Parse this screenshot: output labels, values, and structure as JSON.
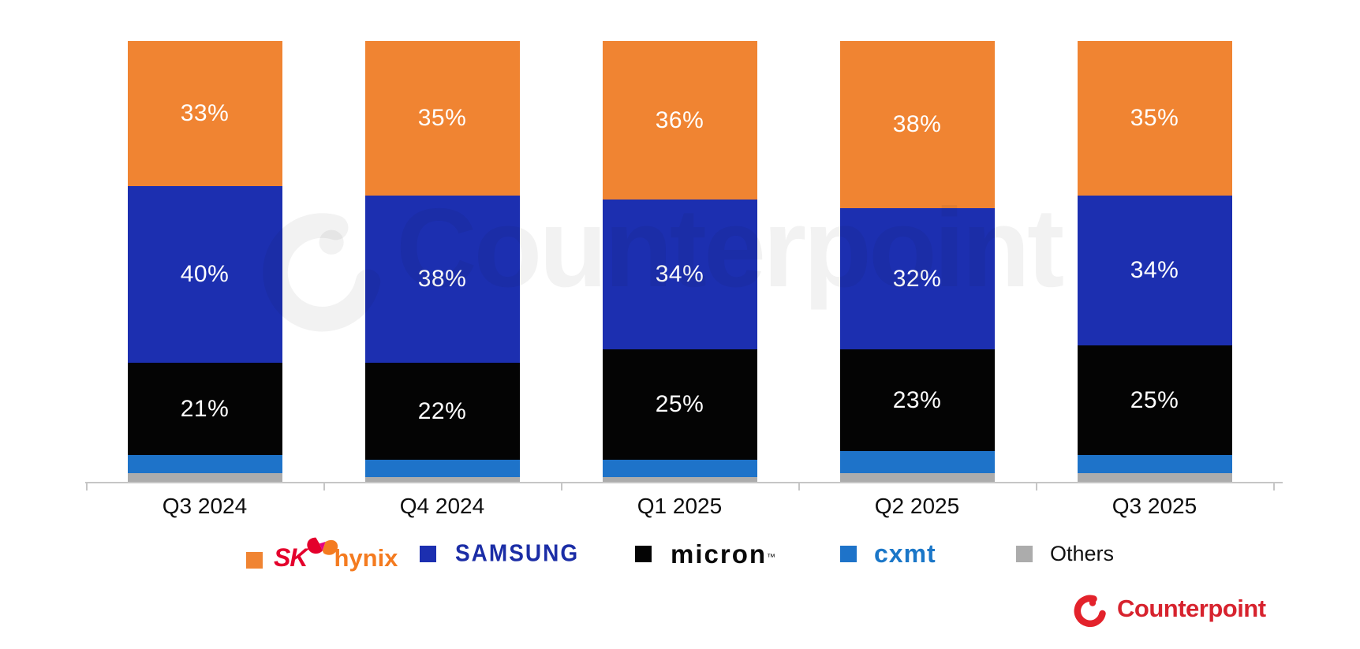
{
  "chart_data": {
    "type": "bar",
    "subtype": "stacked-100",
    "categories": [
      "Q3 2024",
      "Q4 2024",
      "Q1 2025",
      "Q2 2025",
      "Q3 2025"
    ],
    "series": [
      {
        "name": "SK hynix",
        "color": "#F08432",
        "labeled": true,
        "values": [
          33,
          35,
          36,
          38,
          35
        ]
      },
      {
        "name": "Samsung",
        "color": "#1C2FB0",
        "labeled": true,
        "values": [
          40,
          38,
          34,
          32,
          34
        ]
      },
      {
        "name": "Micron",
        "color": "#040404",
        "labeled": true,
        "values": [
          21,
          22,
          25,
          23,
          25
        ]
      },
      {
        "name": "CXMT",
        "color": "#1E73C9",
        "labeled": false,
        "values": [
          4,
          4,
          4,
          5,
          4
        ]
      },
      {
        "name": "Others",
        "color": "#ACACAC",
        "labeled": false,
        "values": [
          2,
          1,
          1,
          2,
          2
        ]
      }
    ],
    "value_suffix": "%",
    "ylim": [
      0,
      100
    ],
    "grid": false,
    "legend_position": "bottom",
    "title": "",
    "xlabel": "",
    "ylabel": ""
  },
  "legend": {
    "sk_hynix": {
      "sk": "SK",
      "hynix": "hynix"
    },
    "samsung": {
      "label": "SAMSUNG"
    },
    "micron": {
      "label": "micron",
      "tm": "™"
    },
    "cxmt": {
      "label": "cxmt"
    },
    "others": {
      "label": "Others"
    }
  },
  "watermark": {
    "text": "Counterpoint"
  },
  "footer": {
    "brand": "Counterpoint"
  },
  "colors": {
    "sk_red": "#E4002C",
    "hynix_orange": "#F47B20",
    "sk_accent_magenta": "#E6007E",
    "samsung_logo_blue": "#1B2DA6",
    "micron_black": "#0A0A0A",
    "cxmt_logo_blue": "#1B77C8",
    "counterpoint_red": "#D7232E",
    "counterpoint_mark_red": "#E3222B",
    "axis_gray": "#C6C6C6",
    "bar_label_white": "#FFFFFF"
  }
}
